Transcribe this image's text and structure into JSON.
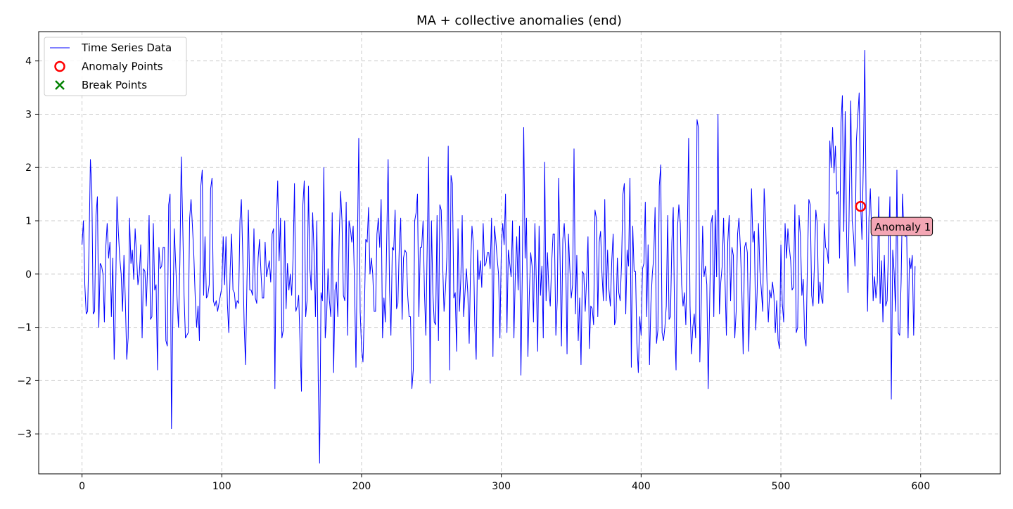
{
  "chart_data": {
    "type": "line",
    "title": "MA + collective anomalies (end)",
    "xlabel": "",
    "ylabel": "",
    "xlim": [
      -31,
      657
    ],
    "ylim": [
      -3.75,
      4.55
    ],
    "xticks": [
      0,
      100,
      200,
      300,
      400,
      500,
      600
    ],
    "yticks": [
      -3,
      -2,
      -1,
      0,
      1,
      2,
      3,
      4
    ],
    "grid": true,
    "legend_position": "upper-left",
    "legend": [
      {
        "label": "Time Series Data",
        "marker": "line",
        "color": "#0000ff"
      },
      {
        "label": "Anomaly Points",
        "marker": "open-circle",
        "color": "#ff0000"
      },
      {
        "label": "Break Points",
        "marker": "x",
        "color": "#008000"
      }
    ],
    "series": [
      {
        "name": "Time Series Data",
        "color": "#0000ff",
        "x_start": 0,
        "x_step": 1,
        "y": [
          0.55,
          1.0,
          -0.2,
          -0.75,
          -0.7,
          0.5,
          2.15,
          1.6,
          -0.75,
          -0.7,
          1.1,
          1.45,
          -1.0,
          0.2,
          0.15,
          0.0,
          -0.9,
          0.5,
          0.95,
          0.3,
          0.6,
          -0.8,
          0.3,
          -1.6,
          -0.5,
          1.45,
          0.8,
          0.3,
          0.0,
          -0.7,
          0.35,
          -0.5,
          -1.6,
          -1.2,
          1.05,
          0.2,
          0.45,
          -0.1,
          0.85,
          0.35,
          -0.2,
          0.0,
          0.55,
          -1.2,
          0.1,
          0.05,
          -0.6,
          0.2,
          1.1,
          -0.85,
          -0.8,
          0.95,
          -0.3,
          -0.2,
          -1.8,
          0.5,
          0.1,
          0.15,
          0.5,
          0.5,
          -1.25,
          -1.35,
          1.3,
          1.5,
          -2.9,
          -0.8,
          0.85,
          0.2,
          -0.45,
          -1.0,
          0.2,
          2.2,
          1.0,
          -0.4,
          -1.2,
          -1.15,
          -1.1,
          1.05,
          1.4,
          0.9,
          0.35,
          -0.45,
          -1.0,
          -0.6,
          -1.25,
          1.65,
          1.95,
          -0.4,
          0.7,
          -0.45,
          -0.4,
          -0.2,
          1.6,
          1.8,
          -0.5,
          -0.6,
          -0.5,
          -0.7,
          -0.55,
          -0.4,
          -0.25,
          0.7,
          -0.2,
          0.7,
          -0.55,
          -1.1,
          0.1,
          0.75,
          -0.3,
          -0.35,
          -0.65,
          -0.5,
          -0.55,
          1.0,
          1.4,
          0.35,
          -0.95,
          -1.7,
          -0.15,
          1.2,
          -0.3,
          -0.3,
          -0.4,
          0.85,
          -0.45,
          -0.55,
          0.3,
          0.65,
          0.05,
          -0.45,
          -0.45,
          0.6,
          -0.05,
          0.1,
          0.25,
          -0.15,
          0.75,
          0.85,
          -2.15,
          0.9,
          1.75,
          0.25,
          1.05,
          -1.2,
          -1.05,
          1.0,
          -0.65,
          0.2,
          -0.3,
          0.0,
          -0.4,
          0.3,
          1.7,
          -0.7,
          -0.6,
          -0.4,
          -1.3,
          -2.2,
          1.3,
          1.75,
          -0.8,
          -0.5,
          1.65,
          0.1,
          -0.3,
          1.15,
          0.4,
          -0.8,
          1.0,
          -2.0,
          -3.55,
          -0.35,
          -0.5,
          2.0,
          -1.2,
          -0.8,
          0.1,
          -0.5,
          -0.8,
          1.15,
          -1.85,
          -0.3,
          -0.15,
          -0.8,
          0.7,
          1.55,
          1.0,
          -0.4,
          -0.5,
          1.35,
          -1.15,
          1.0,
          0.85,
          0.6,
          0.9,
          -0.25,
          -1.75,
          0.5,
          2.55,
          -0.7,
          -1.4,
          -1.65,
          -0.7,
          0.65,
          0.6,
          1.25,
          0.0,
          0.3,
          0.0,
          -0.7,
          -0.7,
          0.75,
          1.05,
          0.5,
          1.4,
          -1.2,
          -0.45,
          -0.9,
          0.65,
          2.15,
          -0.3,
          -1.15,
          0.5,
          0.45,
          1.2,
          -0.65,
          -0.55,
          0.55,
          1.05,
          -0.85,
          0.3,
          0.45,
          0.4,
          -0.4,
          -0.8,
          -0.8,
          -2.15,
          -1.8,
          1.0,
          1.15,
          1.5,
          -0.8,
          0.5,
          0.5,
          1.0,
          -0.35,
          -1.15,
          0.6,
          2.2,
          -2.05,
          1.0,
          -0.35,
          -0.9,
          -0.95,
          1.1,
          -1.25,
          1.3,
          1.2,
          0.2,
          -0.7,
          -0.3,
          0.3,
          2.4,
          -1.8,
          1.85,
          1.7,
          -0.45,
          -0.35,
          -1.45,
          0.85,
          -0.7,
          -0.1,
          1.1,
          -0.8,
          -0.35,
          0.1,
          -0.35,
          -1.3,
          0.15,
          0.9,
          0.55,
          -0.95,
          -1.6,
          0.45,
          -0.1,
          0.25,
          -0.25,
          0.95,
          0.15,
          0.2,
          0.4,
          0.4,
          0.1,
          1.05,
          -1.55,
          0.9,
          0.65,
          0.3,
          0.0,
          -1.2,
          0.5,
          0.95,
          0.55,
          1.5,
          -1.1,
          0.45,
          0.2,
          -0.05,
          1.0,
          -1.2,
          0.0,
          0.7,
          -0.3,
          0.9,
          -1.9,
          0.05,
          2.75,
          0.3,
          1.05,
          -1.55,
          -0.4,
          0.4,
          0.15,
          -0.9,
          0.95,
          -0.1,
          -1.45,
          0.9,
          -0.4,
          0.15,
          -1.2,
          2.1,
          -0.5,
          0.4,
          -0.3,
          -0.6,
          0.2,
          0.75,
          0.75,
          -1.15,
          -0.5,
          1.8,
          0.3,
          -1.35,
          0.65,
          0.95,
          0.4,
          -1.5,
          0.75,
          0.1,
          -0.45,
          -0.2,
          2.35,
          -0.75,
          0.35,
          -1.25,
          -0.45,
          -1.7,
          0.05,
          0.0,
          -0.7,
          -0.1,
          0.7,
          -1.4,
          -0.6,
          -0.65,
          -0.95,
          1.2,
          1.05,
          -0.8,
          0.6,
          0.8,
          0.0,
          -0.5,
          1.4,
          -0.5,
          0.45,
          -0.3,
          -0.6,
          0.25,
          0.75,
          -0.95,
          -0.85,
          0.3,
          -0.35,
          -0.5,
          0.2,
          1.5,
          1.7,
          -0.75,
          0.45,
          0.15,
          1.8,
          -1.75,
          0.9,
          0.05,
          0.05,
          -1.3,
          -1.85,
          -0.8,
          -1.15,
          0.1,
          0.2,
          1.35,
          -0.8,
          0.55,
          -1.7,
          -0.55,
          0.0,
          0.3,
          1.25,
          -1.3,
          -1.05,
          1.65,
          2.05,
          -1.1,
          -1.25,
          -1.0,
          -0.6,
          1.1,
          -0.85,
          -0.8,
          0.6,
          1.25,
          -0.95,
          -1.8,
          0.85,
          1.3,
          0.95,
          -0.2,
          -0.6,
          -0.35,
          -0.95,
          0.6,
          2.55,
          -0.6,
          -1.5,
          -1.0,
          -0.75,
          -1.2,
          2.9,
          2.75,
          -1.65,
          -0.55,
          0.9,
          -0.05,
          0.15,
          -0.2,
          -2.15,
          -0.6,
          0.95,
          1.1,
          -0.8,
          1.2,
          -0.05,
          3.0,
          -0.75,
          -0.15,
          0.15,
          1.05,
          -0.1,
          -1.15,
          0.6,
          1.1,
          -0.5,
          0.5,
          0.35,
          -1.2,
          -0.7,
          0.75,
          1.05,
          0.5,
          -0.25,
          -1.5,
          0.5,
          0.6,
          0.4,
          -1.45,
          -0.05,
          1.6,
          0.6,
          0.8,
          -1.05,
          -0.35,
          0.95,
          0.05,
          -0.3,
          -0.7,
          1.6,
          1.05,
          -0.1,
          -0.9,
          -0.3,
          -0.45,
          -0.15,
          -0.4,
          -1.1,
          -0.5,
          -1.25,
          -1.4,
          0.55,
          -0.55,
          -0.9,
          0.95,
          0.3,
          0.85,
          0.5,
          0.25,
          -0.3,
          -0.25,
          1.3,
          -1.1,
          -1.0,
          1.1,
          0.7,
          -0.4,
          -0.1,
          -1.2,
          -1.35,
          0.25,
          1.4,
          1.3,
          -0.4,
          -0.6,
          0.2,
          1.2,
          0.95,
          -0.55,
          -0.15,
          -0.45,
          -0.55,
          0.95,
          0.5,
          0.45,
          0.2,
          2.5,
          2.0,
          2.75,
          1.9,
          2.4,
          1.5,
          1.55,
          0.3,
          2.85,
          3.35,
          0.8,
          3.05,
          0.75,
          -0.35,
          1.5,
          3.25,
          1.0,
          0.7,
          0.15,
          2.5,
          2.95,
          3.4,
          1.35,
          0.65,
          2.1,
          4.2,
          1.2,
          -0.7,
          1.05,
          1.6,
          0.7,
          -0.5,
          -0.05,
          -0.45,
          -0.15,
          1.45,
          -0.55,
          0.25,
          -0.9,
          0.35,
          -0.6,
          -0.5,
          0.5,
          1.45,
          -2.35,
          0.45,
          0.05,
          -0.7,
          1.95,
          -1.1,
          -1.15,
          -0.15,
          1.5,
          0.8,
          0.7,
          0.75,
          -1.2,
          0.3,
          0.1,
          0.35,
          -1.15,
          0.15
        ]
      }
    ],
    "anomaly_points": [
      {
        "x": 557,
        "y": 1.27
      }
    ],
    "break_points": [],
    "annotations": [
      {
        "text": "Anomaly 1",
        "x": 566,
        "y": 0.88
      }
    ]
  }
}
